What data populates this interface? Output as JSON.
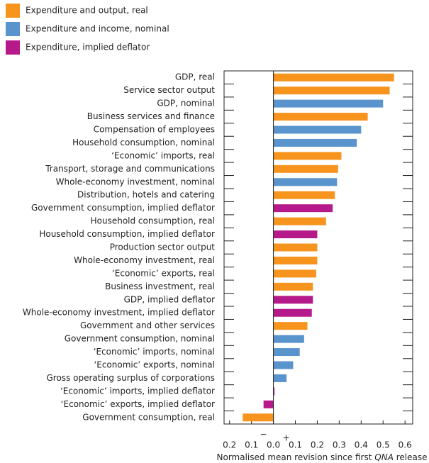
{
  "chart_data": {
    "type": "bar",
    "orientation": "horizontal",
    "categories": [
      "GDP, real",
      "Service sector output",
      "GDP, nominal",
      "Business services and finance",
      "Compensation of employees",
      "Household consumption, nominal",
      "‘Economic’ imports, real",
      "Transport, storage and communications",
      "Whole-economy investment, nominal",
      "Distribution, hotels and catering",
      "Government consumption, implied deflator",
      "Household consumption, real",
      "Household consumption, implied deflator",
      "Production sector output",
      "Whole-economy investment, real",
      "‘Economic’ exports, real",
      "Business investment, real",
      "GDP, implied deflator",
      "Whole-economy investment, implied deflator",
      "Government and other services",
      "Government consumption, nominal",
      "‘Economic’ imports, nominal",
      "‘Economic’ exports, nominal",
      "Gross operating surplus of corporations",
      "‘Economic’ imports, implied deflator",
      "‘Economic’ exports, implied deflator",
      "Government consumption, real"
    ],
    "series": [
      {
        "name": "Expenditure and output, real",
        "color": "#f7941d",
        "values": [
          0.55,
          0.53,
          null,
          0.43,
          null,
          null,
          0.31,
          0.295,
          null,
          0.28,
          null,
          0.24,
          null,
          0.2,
          0.2,
          0.195,
          0.18,
          null,
          null,
          0.155,
          null,
          null,
          null,
          null,
          null,
          null,
          -0.14
        ]
      },
      {
        "name": "Expenditure and income, nominal",
        "color": "#5a94cc",
        "values": [
          null,
          null,
          0.5,
          null,
          0.4,
          0.38,
          null,
          null,
          0.29,
          null,
          null,
          null,
          null,
          null,
          null,
          null,
          null,
          null,
          null,
          null,
          0.14,
          0.12,
          0.09,
          0.06,
          null,
          null,
          null
        ]
      },
      {
        "name": "Expenditure, implied deflator",
        "color": "#b5198a",
        "values": [
          null,
          null,
          null,
          null,
          null,
          null,
          null,
          null,
          null,
          null,
          0.27,
          null,
          0.2,
          null,
          null,
          null,
          null,
          0.18,
          0.175,
          null,
          null,
          null,
          null,
          null,
          0.005,
          -0.045,
          null
        ]
      }
    ],
    "xlim": [
      -0.225,
      0.635
    ],
    "xticks": [
      {
        "value": -0.2,
        "label": "0.2"
      },
      {
        "value": -0.1,
        "label": "0.1"
      },
      {
        "value": 0,
        "label": "0.0"
      },
      0.1,
      0.2,
      0.3,
      0.4,
      0.5,
      0.6
    ],
    "sign_labels": [
      "−",
      "+"
    ],
    "xlabel": [
      "Normalised mean revision since first ",
      "QNA",
      " release"
    ]
  }
}
